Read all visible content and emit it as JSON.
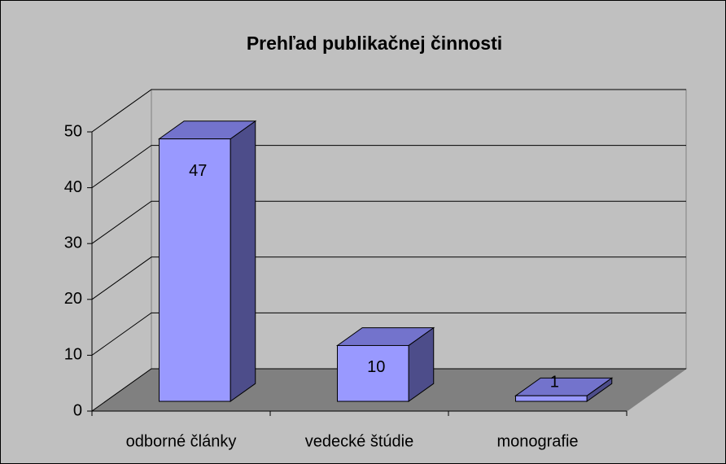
{
  "chart_data": {
    "type": "bar",
    "title": "Prehľad publikačnej činnosti",
    "categories": [
      "odborné články",
      "vedecké štúdie",
      "monografie"
    ],
    "values": [
      47,
      10,
      1
    ],
    "color": "#9999ff",
    "ylim": [
      0,
      50
    ],
    "yticks": [
      0,
      10,
      20,
      30,
      40,
      50
    ],
    "grid": true
  }
}
